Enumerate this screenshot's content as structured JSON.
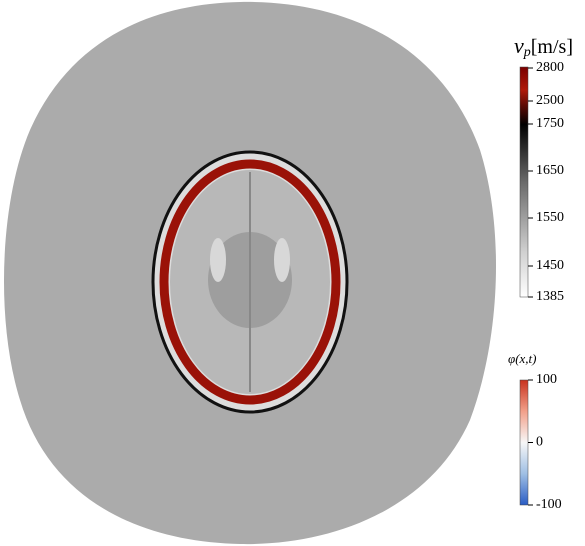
{
  "colorbars": [
    {
      "title_symbol": "v",
      "title_subscript": "p",
      "title_unit": "[m/s]",
      "ticks": [
        2800,
        2500,
        1750,
        1650,
        1550,
        1450,
        1385
      ]
    },
    {
      "title": "φ(x,t)",
      "ticks": [
        100,
        0,
        -100
      ]
    }
  ]
}
